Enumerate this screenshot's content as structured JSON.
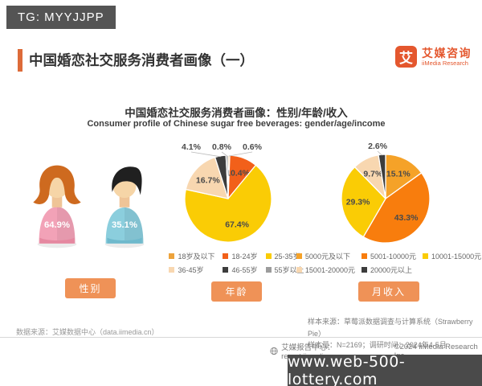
{
  "banner": {
    "text": "TG: MYYJJPP"
  },
  "header": {
    "title": "中国婚恋社交服务消费者画像（一）",
    "logo": {
      "symbol": "艾",
      "name_cn": "艾媒咨询",
      "name_en": "iiMedia Research"
    }
  },
  "chart_header": {
    "title_cn": "中国婚恋社交服务消费者画像：性别/年龄/收入",
    "title_en": "Consumer profile of Chinese sugar free beverages: gender/age/income"
  },
  "chart_data": [
    {
      "type": "pictogram",
      "button": "性别",
      "categories": [
        "female",
        "male"
      ],
      "values": [
        64.9,
        35.1
      ],
      "colors": [
        "#F2A2B7",
        "#8BCEDD"
      ]
    },
    {
      "type": "pie",
      "button": "年龄",
      "categories": [
        "18岁及以下",
        "18-24岁",
        "25-35岁",
        "36-45岁",
        "46-55岁",
        "55岁以上"
      ],
      "values": [
        0.6,
        10.4,
        67.4,
        16.7,
        4.1,
        0.8
      ],
      "colors": [
        "#EDA33C",
        "#F2601A",
        "#FACC05",
        "#F8D7B0",
        "#3C3C3C",
        "#9C9C9C"
      ],
      "legend_position": "bottom",
      "start_angle": "top-clockwise"
    },
    {
      "type": "pie",
      "button": "月收入",
      "categories": [
        "5000元及以下",
        "5001-10000元",
        "10001-15000元",
        "15001-20000元",
        "20000元以上"
      ],
      "values": [
        15.1,
        43.3,
        29.3,
        9.7,
        2.6
      ],
      "colors": [
        "#F5A228",
        "#F87D0D",
        "#FACC05",
        "#F8D7B0",
        "#3C3C3C"
      ],
      "legend_position": "bottom",
      "start_angle": "top-clockwise"
    }
  ],
  "notes": {
    "data_source": "数据来源：艾媒数据中心（data.iimedia.cn）",
    "sample_source": "样本来源：草莓派数据调查与计算系统（Strawberry Pie）",
    "sample_info": "样本量：N=2169；调研时间：2024年4-5月"
  },
  "footer": {
    "report_center": "艾媒报告中心：report.iimedia.cn",
    "copyright": "©2024 iiMedia Research Inc"
  },
  "watermark": {
    "text": "www.web-500-lottery.com"
  }
}
